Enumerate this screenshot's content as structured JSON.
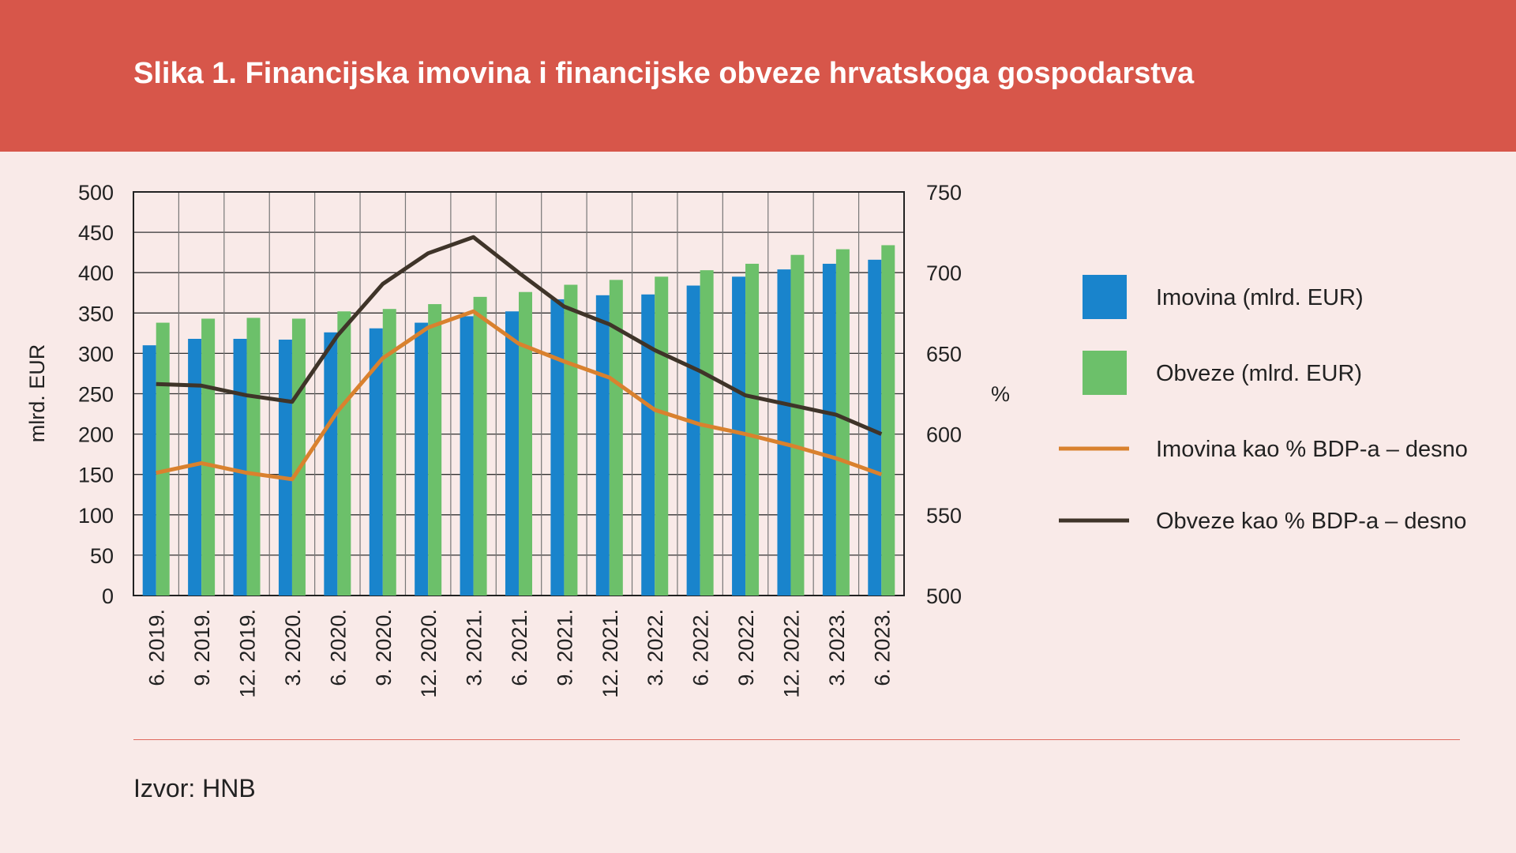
{
  "title": "Slika 1. Financijska imovina i financijske obveze hrvatskoga gospodarstva",
  "source": "Izvor: HNB",
  "colors": {
    "header": "#d7564a",
    "imovina": "#1984cc",
    "obveze": "#6cc06a",
    "imovina_pct": "#d9812e",
    "obveze_pct": "#3f3429"
  },
  "chart_data": {
    "type": "bar+line",
    "title": "Slika 1. Financijska imovina i financijske obveze hrvatskoga gospodarstva",
    "ylabel": "mlrd. EUR",
    "y2label": "%",
    "ylim": [
      0,
      500
    ],
    "y2lim": [
      500,
      750
    ],
    "yticks": [
      0,
      50,
      100,
      150,
      200,
      250,
      300,
      350,
      400,
      450,
      500
    ],
    "y2ticks": [
      500,
      550,
      600,
      650,
      700,
      750
    ],
    "grid": true,
    "legend": "right",
    "categories": [
      "6. 2019.",
      "9. 2019.",
      "12. 2019.",
      "3. 2020.",
      "6. 2020.",
      "9. 2020.",
      "12. 2020.",
      "3. 2021.",
      "6. 2021.",
      "9. 2021.",
      "12. 2021.",
      "3. 2022.",
      "6. 2022.",
      "9. 2022.",
      "12. 2022.",
      "3. 2023.",
      "6. 2023."
    ],
    "series": [
      {
        "name": "Imovina (mlrd. EUR)",
        "type": "bar",
        "axis": "left",
        "values": [
          310,
          318,
          318,
          317,
          326,
          331,
          338,
          346,
          352,
          367,
          372,
          373,
          384,
          395,
          404,
          411,
          416
        ]
      },
      {
        "name": "Obveze (mlrd. EUR)",
        "type": "bar",
        "axis": "left",
        "values": [
          338,
          343,
          344,
          343,
          352,
          355,
          361,
          370,
          376,
          385,
          391,
          395,
          403,
          411,
          422,
          429,
          434
        ]
      },
      {
        "name": "Imovina kao % BDP-a – desno",
        "type": "line",
        "axis": "right",
        "values": [
          576,
          582,
          576,
          572,
          614,
          647,
          666,
          676,
          656,
          645,
          635,
          615,
          606,
          600,
          593,
          585,
          575
        ]
      },
      {
        "name": "Obveze kao % BDP-a – desno",
        "type": "line",
        "axis": "right",
        "values": [
          631,
          630,
          624,
          620,
          661,
          693,
          712,
          722,
          700,
          679,
          668,
          652,
          639,
          624,
          618,
          612,
          600
        ]
      }
    ]
  }
}
